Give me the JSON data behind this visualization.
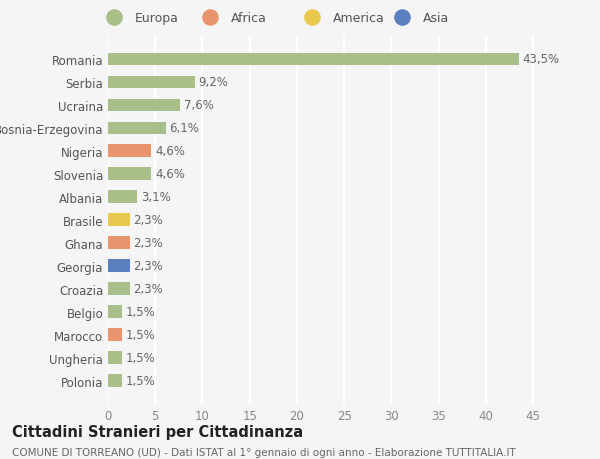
{
  "categories": [
    "Polonia",
    "Ungheria",
    "Marocco",
    "Belgio",
    "Croazia",
    "Georgia",
    "Ghana",
    "Brasile",
    "Albania",
    "Slovenia",
    "Nigeria",
    "Bosnia-Erzegovina",
    "Ucraina",
    "Serbia",
    "Romania"
  ],
  "values": [
    1.5,
    1.5,
    1.5,
    1.5,
    2.3,
    2.3,
    2.3,
    2.3,
    3.1,
    4.6,
    4.6,
    6.1,
    7.6,
    9.2,
    43.5
  ],
  "labels": [
    "1,5%",
    "1,5%",
    "1,5%",
    "1,5%",
    "2,3%",
    "2,3%",
    "2,3%",
    "2,3%",
    "3,1%",
    "4,6%",
    "4,6%",
    "6,1%",
    "7,6%",
    "9,2%",
    "43,5%"
  ],
  "colors": [
    "#a8bf8a",
    "#a8bf8a",
    "#e8956d",
    "#a8bf8a",
    "#a8bf8a",
    "#5b7fbf",
    "#e8956d",
    "#e8c94e",
    "#a8bf8a",
    "#a8bf8a",
    "#e8956d",
    "#a8bf8a",
    "#a8bf8a",
    "#a8bf8a",
    "#a8bf8a"
  ],
  "legend_labels": [
    "Europa",
    "Africa",
    "America",
    "Asia"
  ],
  "legend_colors": [
    "#a8bf8a",
    "#e8956d",
    "#e8c94e",
    "#5b7fbf"
  ],
  "title": "Cittadini Stranieri per Cittadinanza",
  "subtitle": "COMUNE DI TORREANO (UD) - Dati ISTAT al 1° gennaio di ogni anno - Elaborazione TUTTITALIA.IT",
  "xlim": [
    0,
    47
  ],
  "xticks": [
    0,
    5,
    10,
    15,
    20,
    25,
    30,
    35,
    40,
    45
  ],
  "background_color": "#f5f5f5",
  "grid_color": "#ffffff",
  "label_fontsize": 8.5,
  "ytick_fontsize": 8.5,
  "xtick_fontsize": 8.5,
  "title_fontsize": 10.5,
  "subtitle_fontsize": 7.5,
  "legend_fontsize": 9
}
